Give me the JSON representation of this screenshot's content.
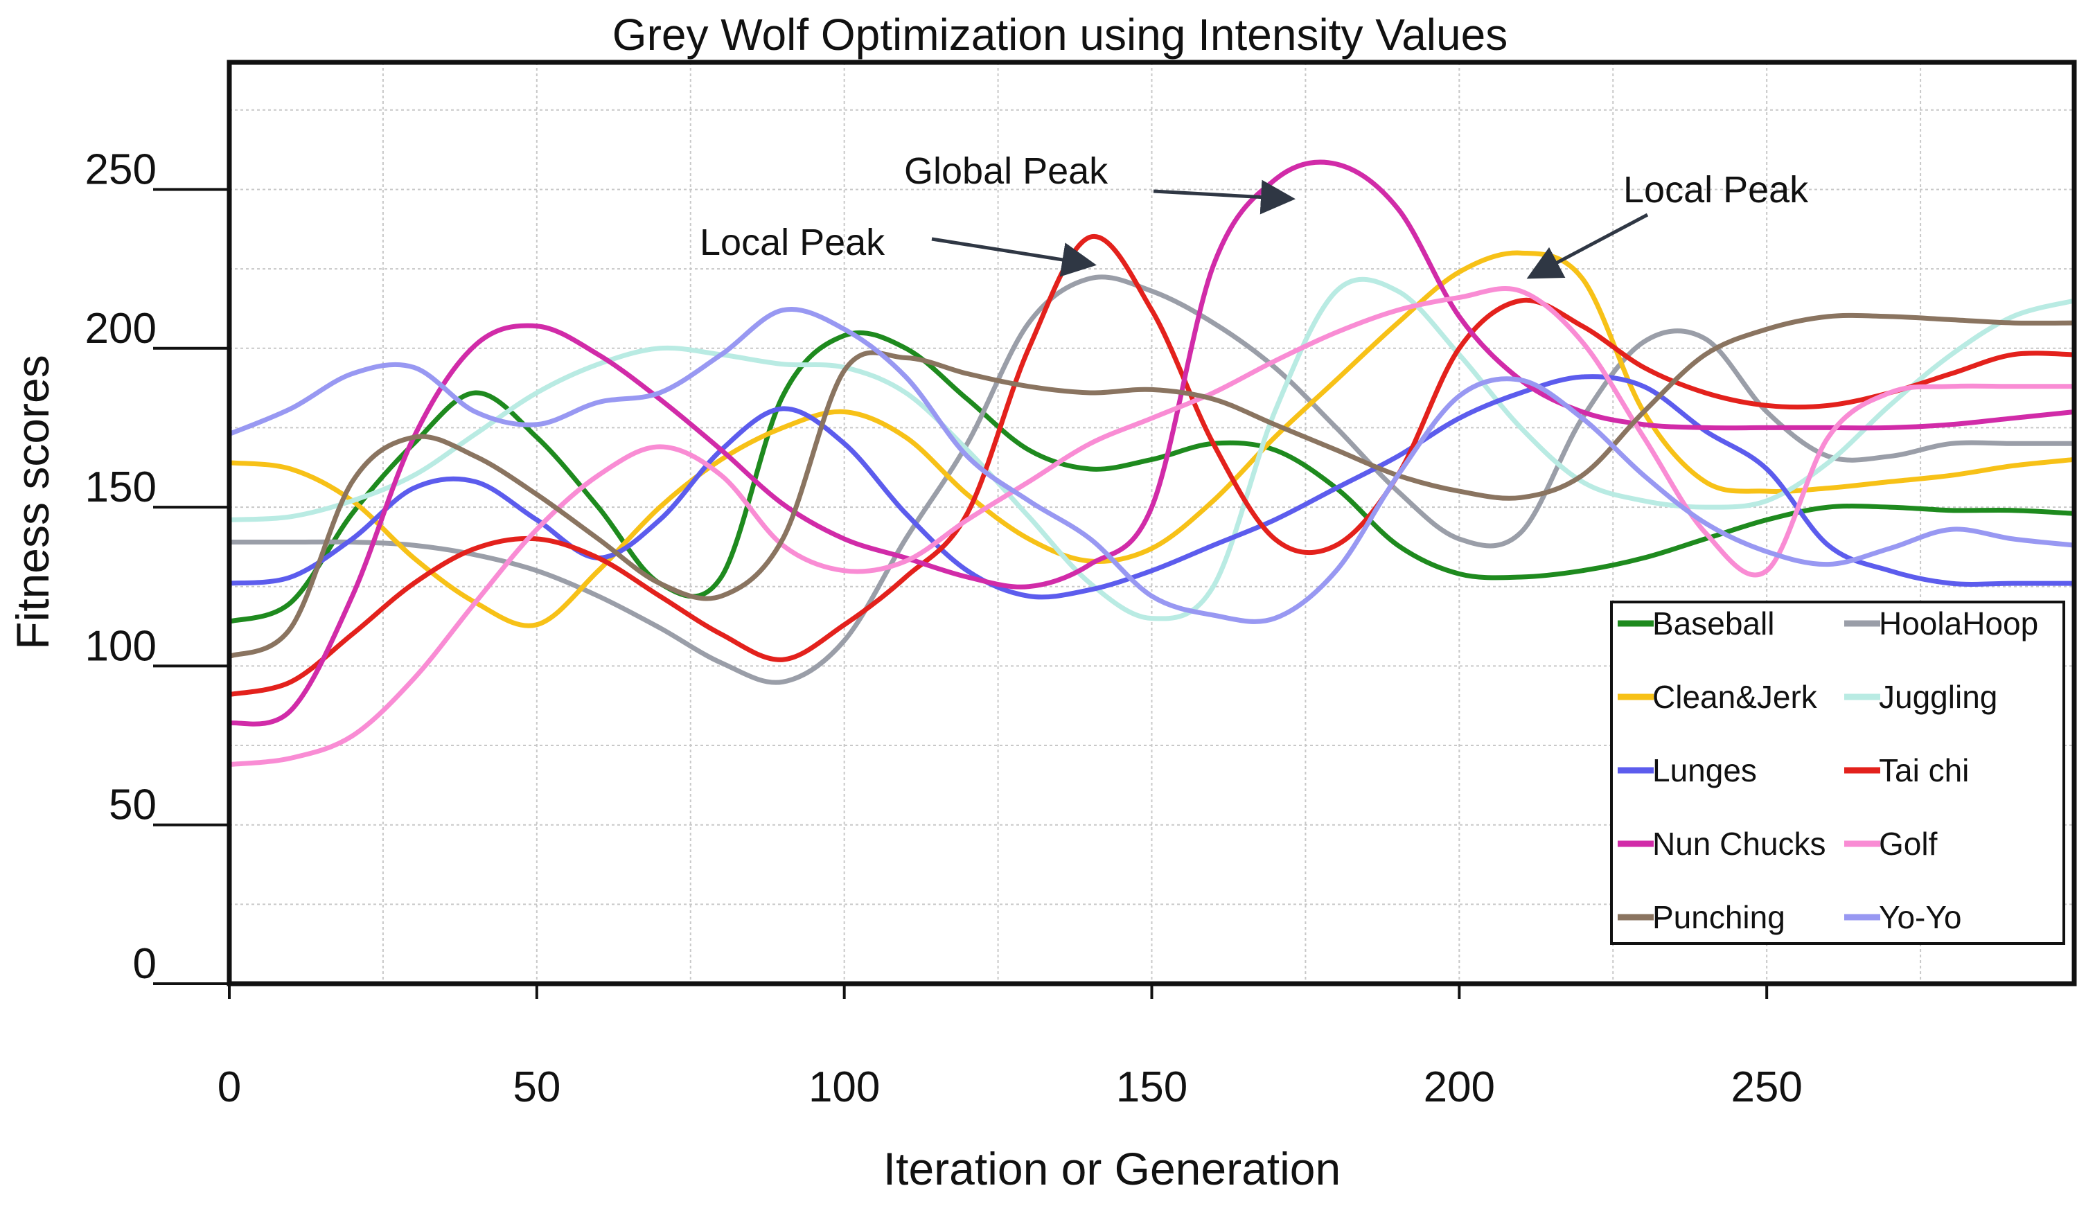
{
  "chart_data": {
    "type": "line",
    "title": "Grey Wolf Optimization using Intensity Values",
    "xlabel": "Iteration or Generation",
    "ylabel": "Fitness scores",
    "xlim": [
      0,
      300
    ],
    "ylim": [
      0,
      290
    ],
    "xticks": [
      0,
      50,
      100,
      150,
      200,
      250
    ],
    "yticks": [
      0,
      50,
      100,
      150,
      200,
      250
    ],
    "grid": true,
    "legend_position": "bottom-right",
    "x": [
      0,
      10,
      20,
      30,
      40,
      50,
      60,
      70,
      80,
      90,
      100,
      110,
      120,
      130,
      140,
      150,
      160,
      170,
      180,
      190,
      200,
      210,
      220,
      230,
      240,
      250,
      260,
      270,
      280,
      290,
      300
    ],
    "series": [
      {
        "name": "Baseball",
        "color": "#1e8a1e",
        "values": [
          114,
          120,
          148,
          170,
          186,
          172,
          150,
          126,
          128,
          185,
          204,
          200,
          184,
          168,
          162,
          165,
          170,
          168,
          156,
          138,
          129,
          128,
          130,
          134,
          140,
          146,
          150,
          150,
          149,
          149,
          148
        ]
      },
      {
        "name": "HoolaHoop",
        "color": "#9a9ea8",
        "values": [
          139,
          139,
          139,
          138,
          135,
          130,
          122,
          112,
          101,
          95,
          108,
          140,
          170,
          208,
          222,
          218,
          208,
          194,
          175,
          155,
          140,
          142,
          178,
          202,
          203,
          180,
          166,
          166,
          170,
          170,
          170
        ]
      },
      {
        "name": "Clean&Jerk",
        "color": "#f7c117",
        "values": [
          164,
          162,
          152,
          134,
          120,
          113,
          130,
          150,
          165,
          175,
          180,
          172,
          154,
          140,
          133,
          137,
          152,
          172,
          190,
          208,
          224,
          230,
          222,
          180,
          158,
          155,
          156,
          158,
          160,
          163,
          165
        ]
      },
      {
        "name": "Juggling",
        "color": "#b9ebe3",
        "values": [
          146,
          147,
          152,
          160,
          173,
          186,
          195,
          200,
          198,
          195,
          194,
          186,
          168,
          147,
          126,
          115,
          125,
          180,
          218,
          218,
          198,
          175,
          158,
          152,
          150,
          152,
          164,
          182,
          198,
          210,
          215
        ]
      },
      {
        "name": "Lunges",
        "color": "#5c5ced",
        "values": [
          126,
          128,
          140,
          156,
          158,
          146,
          134,
          146,
          168,
          181,
          170,
          148,
          130,
          122,
          124,
          130,
          138,
          146,
          156,
          166,
          178,
          186,
          191,
          188,
          174,
          162,
          138,
          130,
          126,
          126,
          126
        ]
      },
      {
        "name": "Tai chi",
        "color": "#e3211c",
        "values": [
          91,
          95,
          110,
          126,
          137,
          140,
          134,
          122,
          110,
          102,
          113,
          128,
          148,
          200,
          235,
          212,
          170,
          140,
          138,
          160,
          200,
          215,
          207,
          194,
          186,
          182,
          182,
          186,
          192,
          198,
          198
        ]
      },
      {
        "name": "Nun Chucks",
        "color": "#d12ba8",
        "values": [
          82,
          86,
          122,
          172,
          201,
          207,
          198,
          184,
          168,
          151,
          140,
          134,
          128,
          125,
          132,
          150,
          226,
          253,
          258,
          244,
          210,
          190,
          180,
          176,
          175,
          175,
          175,
          175,
          176,
          178,
          180
        ]
      },
      {
        "name": "Golf",
        "color": "#f98cd4",
        "values": [
          69,
          71,
          78,
          96,
          120,
          143,
          160,
          169,
          160,
          138,
          130,
          133,
          146,
          158,
          170,
          178,
          186,
          196,
          205,
          212,
          216,
          218,
          202,
          172,
          142,
          130,
          172,
          186,
          188,
          188,
          188
        ]
      },
      {
        "name": "Punching",
        "color": "#8a7460",
        "values": [
          103,
          112,
          158,
          172,
          166,
          154,
          140,
          126,
          122,
          140,
          193,
          197,
          192,
          188,
          186,
          187,
          184,
          176,
          168,
          160,
          155,
          153,
          160,
          180,
          198,
          206,
          210,
          210,
          209,
          208,
          208
        ]
      },
      {
        "name": "Yo-Yo",
        "color": "#9898f2",
        "values": [
          173,
          181,
          192,
          194,
          180,
          176,
          183,
          186,
          198,
          212,
          206,
          191,
          166,
          152,
          140,
          122,
          116,
          115,
          130,
          160,
          185,
          190,
          178,
          160,
          145,
          136,
          132,
          137,
          143,
          140,
          138
        ]
      }
    ],
    "annotations": [
      {
        "text": "Local Peak",
        "target_series": "Tai chi",
        "target_x": 140,
        "target_y": 235
      },
      {
        "text": "Global Peak",
        "target_series": "Nun Chucks",
        "target_x": 175,
        "target_y": 258
      },
      {
        "text": "Local Peak",
        "target_series": "Clean&Jerk",
        "target_x": 210,
        "target_y": 230
      }
    ]
  }
}
